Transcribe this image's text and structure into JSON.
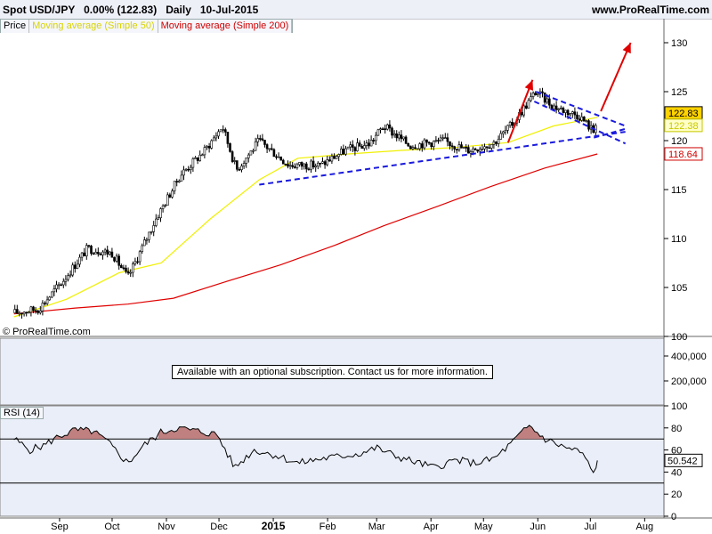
{
  "header": {
    "title": "Spot USD/JPY   0.00% (122.83)   Daily   10-Jul-2015",
    "site": "www.ProRealTime.com"
  },
  "legend": {
    "price": "Price",
    "ma50": "Moving average (Simple 50)",
    "ma200": "Moving average (Simple 200)"
  },
  "copyright": "© ProRealTime.com",
  "volume_note": "Available with an optional subscription. Contact us for more information.",
  "rsi_label": "RSI (14)",
  "colors": {
    "panel_bg": "#eaeef8",
    "candle": "#000000",
    "ma50": "#f0f000",
    "ma200": "#e00000",
    "trendline": "#1a1add",
    "arrow": "#e00000",
    "rsi_fill": "#c08080"
  },
  "chart_data": [
    {
      "type": "line",
      "title": "Spot USD/JPY",
      "ylim": [
        100,
        131
      ],
      "yticks": [
        100,
        105,
        110,
        115,
        120,
        125,
        130
      ],
      "x_ticks": [
        "Sep",
        "Oct",
        "Nov",
        "Dec",
        "2015",
        "Feb",
        "Mar",
        "Apr",
        "May",
        "Jun",
        "Jul",
        "Aug"
      ],
      "price_badges": [
        {
          "name": "Price",
          "value": "122.83"
        },
        {
          "name": "Moving average (Simple 50)",
          "value": "122.38"
        },
        {
          "name": "Moving average (Simple 200)",
          "value": "118.64"
        }
      ],
      "series": [
        {
          "name": "Price",
          "x": [
            "2014-08-11",
            "2014-08-25",
            "2014-09-08",
            "2014-09-22",
            "2014-10-06",
            "2014-10-15",
            "2014-10-31",
            "2014-11-14",
            "2014-11-28",
            "2014-12-08",
            "2014-12-16",
            "2014-12-29",
            "2015-01-15",
            "2015-02-02",
            "2015-02-16",
            "2015-03-02",
            "2015-03-10",
            "2015-03-25",
            "2015-04-13",
            "2015-04-27",
            "2015-05-12",
            "2015-05-22",
            "2015-06-05",
            "2015-06-15",
            "2015-06-30",
            "2015-07-08",
            "2015-07-10"
          ],
          "values": [
            102.4,
            102.8,
            105.7,
            109.0,
            108.5,
            106.0,
            112.0,
            116.5,
            119.0,
            121.5,
            117.0,
            120.0,
            117.5,
            117.5,
            119.0,
            119.7,
            121.5,
            119.5,
            120.0,
            119.0,
            119.8,
            121.6,
            125.0,
            123.5,
            122.5,
            120.9,
            122.83
          ]
        },
        {
          "name": "Moving average (Simple 50)",
          "x": [
            "2014-08-11",
            "2014-09-10",
            "2014-10-10",
            "2014-11-03",
            "2014-12-01",
            "2014-12-29",
            "2015-01-20",
            "2015-02-15",
            "2015-03-20",
            "2015-04-20",
            "2015-05-20",
            "2015-06-15",
            "2015-07-10"
          ],
          "values": [
            102.0,
            103.8,
            106.5,
            107.5,
            112.0,
            116.0,
            118.2,
            118.6,
            119.0,
            119.3,
            119.8,
            121.5,
            122.38
          ]
        },
        {
          "name": "Moving average (Simple 200)",
          "x": [
            "2014-08-11",
            "2014-09-15",
            "2014-10-15",
            "2014-11-10",
            "2014-12-10",
            "2015-01-10",
            "2015-02-10",
            "2015-03-10",
            "2015-04-10",
            "2015-05-10",
            "2015-06-10",
            "2015-07-10"
          ],
          "values": [
            102.3,
            102.9,
            103.3,
            103.9,
            105.6,
            107.3,
            109.3,
            111.3,
            113.3,
            115.3,
            117.2,
            118.64
          ]
        }
      ],
      "trendlines": [
        {
          "x": [
            "2014-12-29",
            "2015-07-26"
          ],
          "values": [
            115.5,
            120.9
          ]
        },
        {
          "x": [
            "2015-07-08",
            "2015-07-26"
          ],
          "values": [
            120.3,
            121.2
          ]
        },
        {
          "x": [
            "2015-06-05",
            "2015-07-26"
          ],
          "values": [
            125.0,
            121.5
          ]
        },
        {
          "x": [
            "2015-06-04",
            "2015-07-26"
          ],
          "values": [
            124.0,
            119.7
          ]
        }
      ],
      "arrows": [
        {
          "x": [
            "2015-05-20",
            "2015-06-03"
          ],
          "values": [
            119.8,
            126.2
          ]
        },
        {
          "x": [
            "2015-07-12",
            "2015-07-29"
          ],
          "values": [
            123.0,
            130.0
          ]
        }
      ]
    },
    {
      "type": "bar",
      "title": "Volume",
      "yticks": [
        "400,000",
        "200,000"
      ]
    },
    {
      "type": "line",
      "title": "RSI (14)",
      "ylim": [
        0,
        100
      ],
      "yticks": [
        0,
        20,
        40,
        60,
        80,
        100
      ],
      "levels": [
        70,
        30
      ],
      "current": "50.542",
      "series": [
        {
          "name": "RSI (14)",
          "x": [
            "2014-08-11",
            "2014-08-20",
            "2014-08-28",
            "2014-09-05",
            "2014-09-15",
            "2014-09-25",
            "2014-10-03",
            "2014-10-15",
            "2014-10-24",
            "2014-11-03",
            "2014-11-12",
            "2014-11-24",
            "2014-12-05",
            "2014-12-15",
            "2014-12-26",
            "2015-01-08",
            "2015-01-20",
            "2015-02-02",
            "2015-02-12",
            "2015-02-25",
            "2015-03-06",
            "2015-03-16",
            "2015-03-26",
            "2015-04-08",
            "2015-04-20",
            "2015-05-01",
            "2015-05-12",
            "2015-05-22",
            "2015-06-01",
            "2015-06-10",
            "2015-06-22",
            "2015-07-01",
            "2015-07-08",
            "2015-07-10"
          ],
          "values": [
            70,
            60,
            64,
            72,
            78,
            77,
            68,
            48,
            64,
            76,
            80,
            77,
            74,
            44,
            60,
            55,
            48,
            52,
            54,
            57,
            62,
            55,
            50,
            44,
            51,
            48,
            52,
            66,
            82,
            70,
            62,
            58,
            38,
            50.5
          ]
        }
      ]
    }
  ]
}
